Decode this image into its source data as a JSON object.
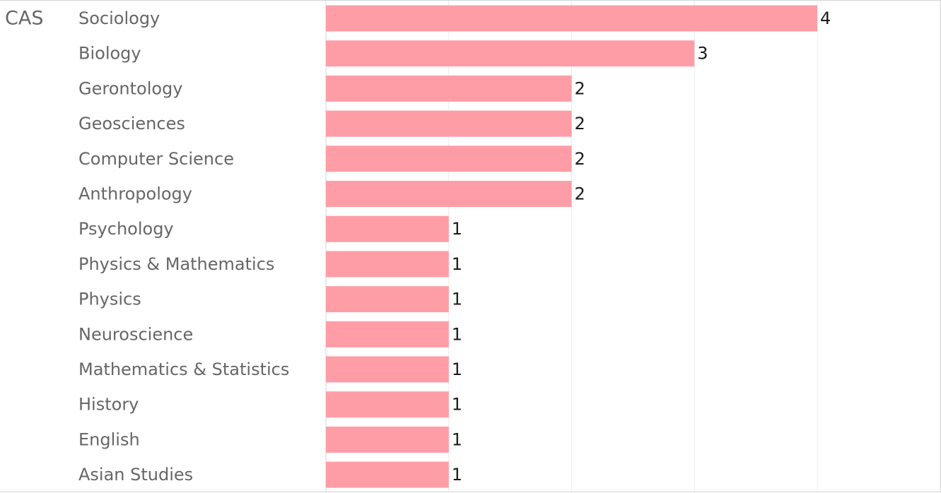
{
  "chart_data": {
    "type": "bar",
    "orientation": "horizontal",
    "group": "CAS",
    "categories": [
      "Sociology",
      "Biology",
      "Gerontology",
      "Geosciences",
      "Computer Science",
      "Anthropology",
      "Psychology",
      "Physics & Mathematics",
      "Physics",
      "Neuroscience",
      "Mathematics & Statistics",
      "History",
      "English",
      "Asian Studies"
    ],
    "values": [
      4,
      3,
      2,
      2,
      2,
      2,
      1,
      1,
      1,
      1,
      1,
      1,
      1,
      1
    ],
    "xlim": [
      0,
      5
    ],
    "grid": true,
    "data_labels": true,
    "title": "",
    "xlabel": "",
    "ylabel": ""
  },
  "colors": {
    "bar": "#ff9da7",
    "gridline": "#ececec",
    "axis": "#d4d4d4"
  }
}
